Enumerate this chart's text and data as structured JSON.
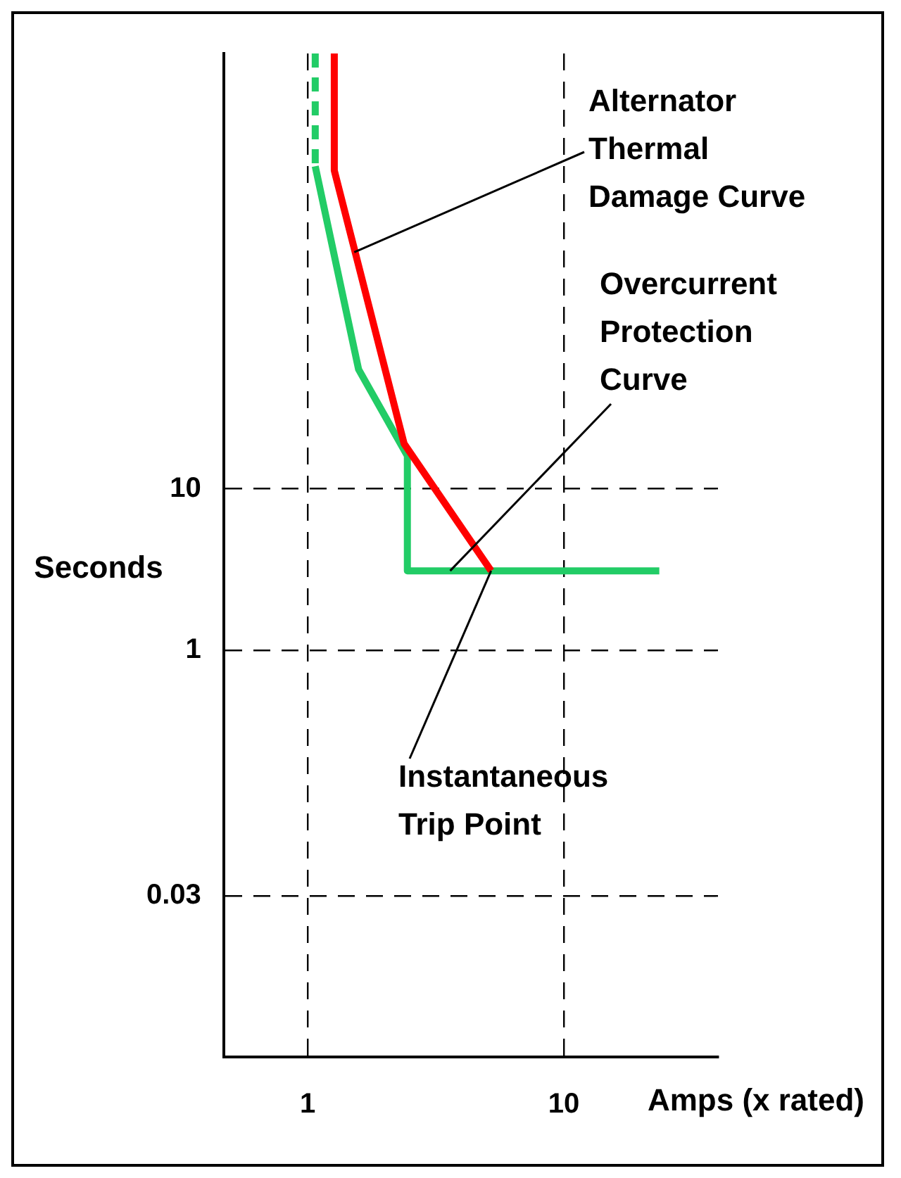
{
  "chart_data": {
    "type": "line",
    "xlabel": "Amps (x rated)",
    "ylabel": "Seconds",
    "log": "xy",
    "xlim": [
      0.47,
      40
    ],
    "xticks": [
      1,
      10
    ],
    "ylim": [
      0.003,
      5000
    ],
    "yticks": [
      10,
      1,
      0.03
    ],
    "grid": true,
    "legend": false,
    "marker": "none",
    "series": [
      {
        "color": "#ff0000",
        "x": [
          1.27,
          1.27,
          2.38,
          5.2
        ],
        "values": [
          5000,
          940,
          19,
          3.1
        ],
        "line_style": "solid"
      },
      {
        "color": "#22cc66",
        "x": [
          1.07,
          1.07
        ],
        "values": [
          5000,
          1000
        ],
        "line_style": "dashed"
      },
      {
        "color": "#22cc66",
        "x": [
          1.07,
          1.58,
          2.45,
          2.45,
          23.6
        ],
        "values": [
          1000,
          55,
          16,
          3.1,
          3.1
        ],
        "line_style": "solid"
      }
    ],
    "annotations": [
      {
        "text": "Alternator Thermal Damage Curve",
        "x": 1.52,
        "y": 293
      },
      {
        "text": "Overcurrent Protection Curve",
        "x": 3.6,
        "y": 3.1
      },
      {
        "text": "Instantaneous Trip Point",
        "x": 5.2,
        "y": 3.1
      }
    ]
  }
}
